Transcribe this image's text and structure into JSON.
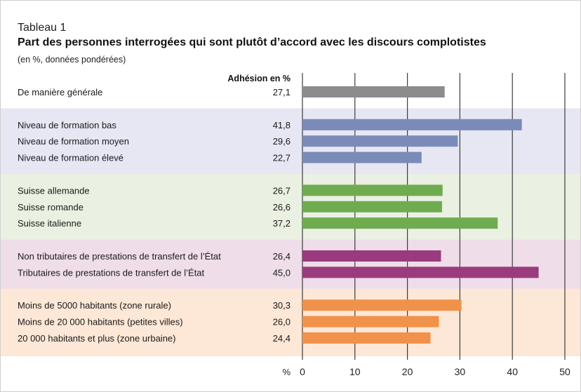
{
  "header": {
    "tableau": "Tableau 1",
    "title": "Part des personnes interrogées qui sont plutôt d’accord avec les discours complotistes",
    "subtitle": "(en %, données pondérées)"
  },
  "chart_data": {
    "type": "bar",
    "orientation": "horizontal",
    "value_column_header": "Adhésion en %",
    "x_axis_unit_label": "%",
    "xlim": [
      0,
      50
    ],
    "x_ticks": [
      0,
      10,
      20,
      30,
      40,
      50
    ],
    "grid": true,
    "groups": [
      {
        "name": "general",
        "color": "#8c8c8c",
        "band_color": "#ffffff",
        "rows": [
          {
            "label": "De manière générale",
            "value": 27.1,
            "value_label": "27,1"
          }
        ]
      },
      {
        "name": "formation",
        "color": "#7b8bb8",
        "band_color": "#e6e7f3",
        "rows": [
          {
            "label": "Niveau de formation bas",
            "value": 41.8,
            "value_label": "41,8"
          },
          {
            "label": "Niveau de formation moyen",
            "value": 29.6,
            "value_label": "29,6"
          },
          {
            "label": "Niveau de formation élevé",
            "value": 22.7,
            "value_label": "22,7"
          }
        ]
      },
      {
        "name": "region",
        "color": "#6fac4f",
        "band_color": "#eaf0e2",
        "rows": [
          {
            "label": "Suisse allemande",
            "value": 26.7,
            "value_label": "26,7"
          },
          {
            "label": "Suisse romande",
            "value": 26.6,
            "value_label": "26,6"
          },
          {
            "label": "Suisse italienne",
            "value": 37.2,
            "value_label": "37,2"
          }
        ]
      },
      {
        "name": "prestations",
        "color": "#9a3b7e",
        "band_color": "#efdde9",
        "rows": [
          {
            "label": "Non tributaires de prestations de transfert de l’État",
            "value": 26.4,
            "value_label": "26,4"
          },
          {
            "label": "Tributaires de prestations de transfert de l’État",
            "value": 45.0,
            "value_label": "45,0"
          }
        ]
      },
      {
        "name": "habitants",
        "color": "#f0924a",
        "band_color": "#fde7d6",
        "rows": [
          {
            "label": "Moins de 5000 habitants (zone rurale)",
            "value": 30.3,
            "value_label": "30,3"
          },
          {
            "label": "Moins de 20 000 habitants (petites villes)",
            "value": 26.0,
            "value_label": "26,0"
          },
          {
            "label": "20 000 habitants et plus (zone urbaine)",
            "value": 24.4,
            "value_label": "24,4"
          }
        ]
      }
    ]
  }
}
